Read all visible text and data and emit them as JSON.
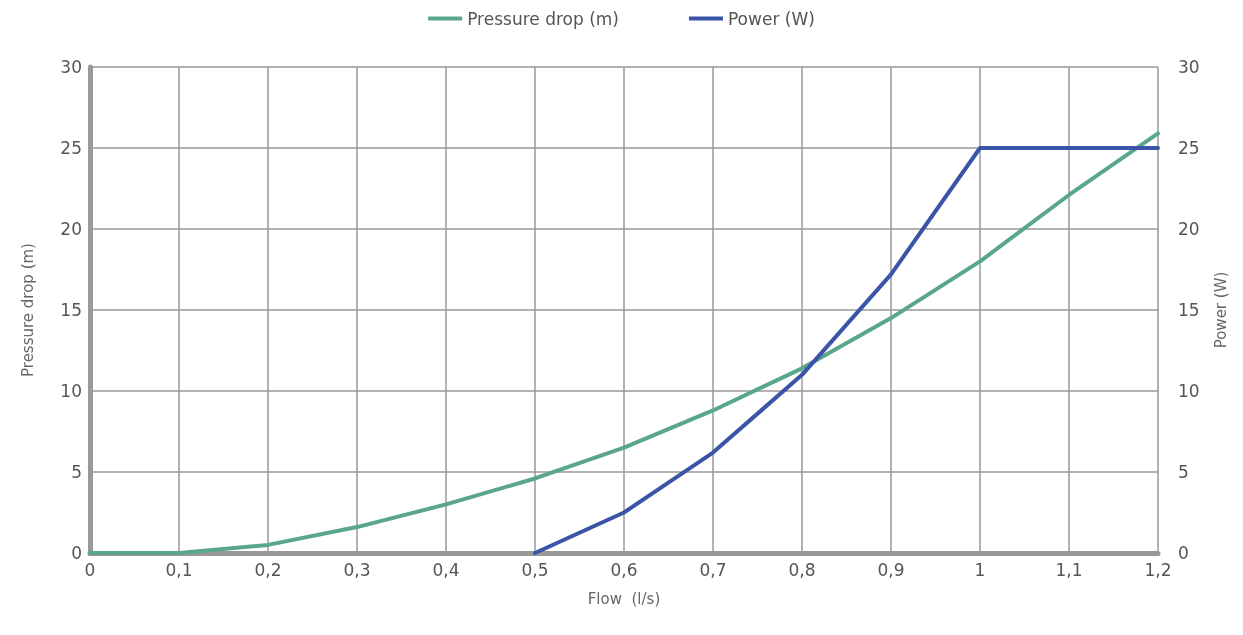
{
  "chart_data": {
    "type": "line",
    "xlabel": "Flow  (l/s)",
    "ylabel": "Pressure drop (m)",
    "y2label": "Power (W)",
    "xlim": [
      0,
      1.2
    ],
    "xticks": [
      0,
      {
        "value": 0.1,
        "label": "0,1"
      },
      {
        "value": 0.2,
        "label": "0,2"
      },
      {
        "value": 0.3,
        "label": "0,3"
      },
      {
        "value": 0.4,
        "label": "0,4"
      },
      {
        "value": 0.5,
        "label": "0,5"
      },
      {
        "value": 0.6,
        "label": "0,6"
      },
      {
        "value": 0.7,
        "label": "0,7"
      },
      {
        "value": 0.8,
        "label": "0,8"
      },
      {
        "value": 0.9,
        "label": "0,9"
      },
      1,
      {
        "value": 1.1,
        "label": "1,1"
      },
      {
        "value": 1.2,
        "label": "1,2"
      }
    ],
    "ylim": [
      0,
      30
    ],
    "yticks": [
      0,
      5,
      10,
      15,
      20,
      25,
      30
    ],
    "y2lim": [
      0,
      30
    ],
    "y2ticks": [
      0,
      5,
      10,
      15,
      20,
      25,
      30
    ],
    "grid": true,
    "legend": "top",
    "marker": "none",
    "line_style": "solid",
    "series": [
      {
        "name": "Pressure drop (m)",
        "color": "#5aa68a",
        "x": [
          0,
          0.1,
          0.2,
          0.3,
          0.4,
          0.5,
          0.6,
          0.7,
          0.8,
          0.9,
          1.0,
          1.1,
          1.2
        ],
        "values": [
          0,
          0,
          0.5,
          1.6,
          3.0,
          4.6,
          6.5,
          8.8,
          11.4,
          14.5,
          18.0,
          22.1,
          25.9
        ]
      },
      {
        "name": "Power (W)",
        "color": "#3a55a8",
        "axis": "y2",
        "x": [
          0.5,
          0.6,
          0.7,
          0.8,
          0.9,
          1.0,
          1.2
        ],
        "values": [
          0,
          2.5,
          6.2,
          11.0,
          17.2,
          25,
          25
        ]
      }
    ]
  }
}
